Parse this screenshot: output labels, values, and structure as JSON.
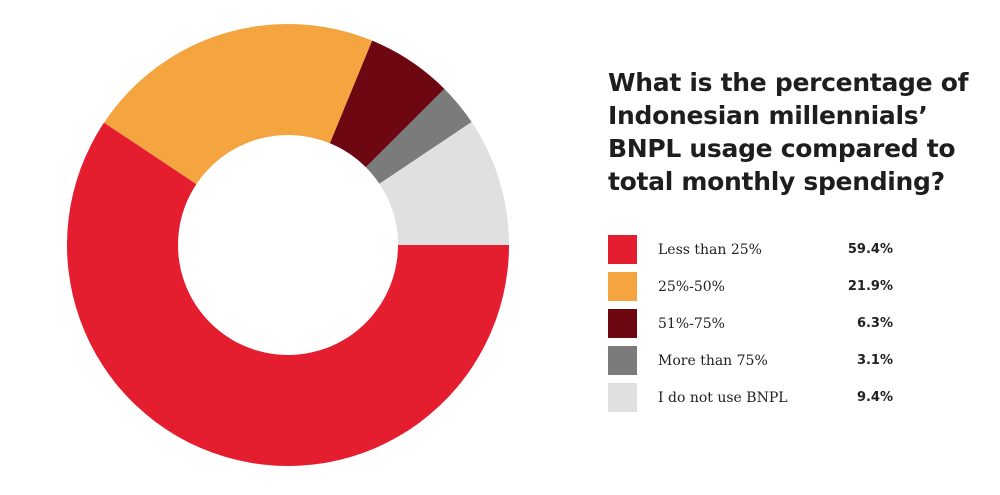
{
  "chart_data": {
    "type": "pie",
    "style": "donut",
    "title": "What is the percentage of Indonesian millennials’ BNPL usage compared to total monthly spending?",
    "categories": [
      "Less than 25%",
      "25%-50%",
      "51%-75%",
      "More than 75%",
      "I do not use BNPL"
    ],
    "values": [
      59.4,
      21.9,
      6.3,
      3.1,
      9.4
    ],
    "value_labels": [
      "59.4%",
      "21.9%",
      "6.3%",
      "3.1%",
      "9.4%"
    ],
    "colors": [
      "#e41e2f",
      "#f4a540",
      "#6d0712",
      "#7b7b7b",
      "#e0e0e0"
    ],
    "legend_position": "right"
  }
}
